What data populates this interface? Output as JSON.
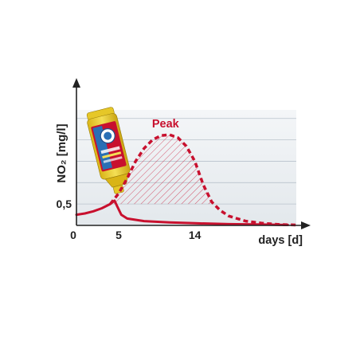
{
  "chart_data": {
    "type": "line",
    "ylabel": "NO₂ [mg/l]",
    "xlabel": "days [d]",
    "x_ticks": [
      {
        "value": 0,
        "label": "0"
      },
      {
        "value": 5,
        "label": "5"
      },
      {
        "value": 14,
        "label": "14"
      }
    ],
    "y_ticks": [
      {
        "value": 0.5,
        "label": "0,5"
      }
    ],
    "xlim": [
      0,
      26
    ],
    "ylim": [
      0,
      2.7
    ],
    "grid": true,
    "annotations": [
      {
        "text": "Peak",
        "x": 11,
        "y": 2.1
      }
    ],
    "series": [
      {
        "style": "solid",
        "color": "#c8102e",
        "points": [
          [
            0,
            0.25
          ],
          [
            1,
            0.28
          ],
          [
            2,
            0.33
          ],
          [
            3,
            0.4
          ],
          [
            4,
            0.5
          ],
          [
            4.5,
            0.58
          ],
          [
            4.8,
            0.45
          ],
          [
            5.3,
            0.25
          ],
          [
            6,
            0.16
          ],
          [
            8,
            0.1
          ],
          [
            11,
            0.07
          ],
          [
            14,
            0.05
          ],
          [
            18,
            0.03
          ],
          [
            22,
            0.02
          ],
          [
            25,
            0.01
          ]
        ]
      },
      {
        "style": "dashed",
        "color": "#c8102e",
        "points": [
          [
            4,
            0.5
          ],
          [
            5,
            0.75
          ],
          [
            6,
            1.1
          ],
          [
            7,
            1.5
          ],
          [
            8,
            1.8
          ],
          [
            9,
            2.0
          ],
          [
            10,
            2.1
          ],
          [
            11,
            2.12
          ],
          [
            12,
            2.05
          ],
          [
            13,
            1.85
          ],
          [
            14,
            1.5
          ],
          [
            15,
            0.95
          ],
          [
            16,
            0.55
          ],
          [
            17,
            0.35
          ],
          [
            18,
            0.22
          ],
          [
            20,
            0.1
          ],
          [
            22,
            0.05
          ],
          [
            24,
            0.02
          ],
          [
            26,
            0.01
          ]
        ]
      }
    ],
    "colors": {
      "curve": "#c8102e",
      "hatch": "#c8102e",
      "grid": "#b9c3cc",
      "plot_background": "#eef1f3",
      "axis": "#222222"
    }
  },
  "icons": {
    "product": "water-conditioner-bottle-icon"
  }
}
